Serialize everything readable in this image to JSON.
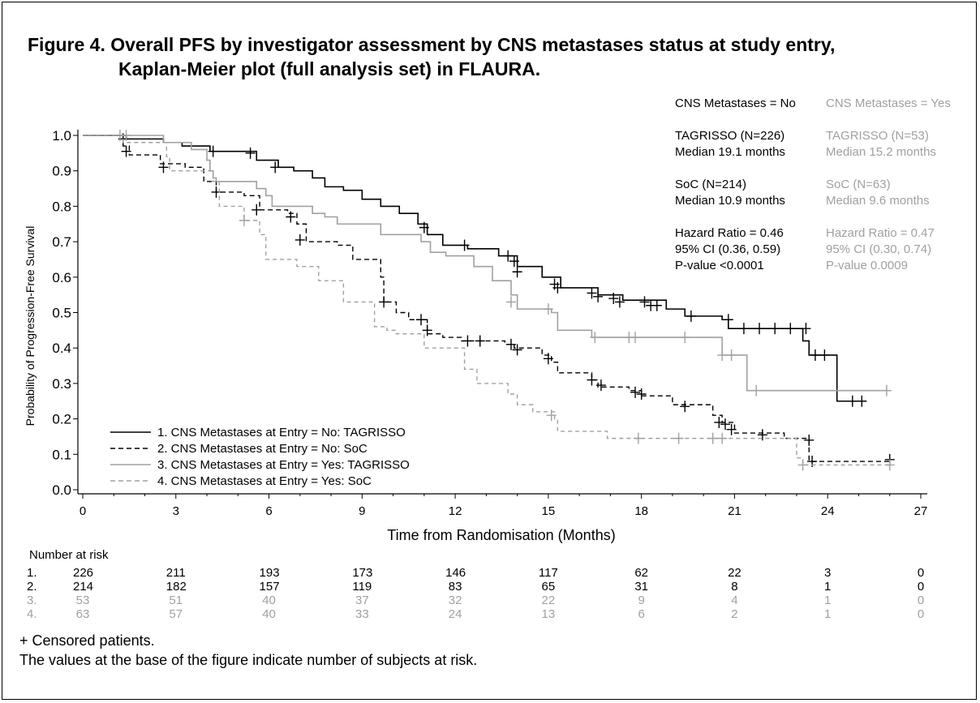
{
  "title": {
    "line1": "Figure 4. Overall PFS by investigator assessment by CNS metastases status at study entry,",
    "line2": "Kaplan-Meier plot (full analysis set) in FLAURA."
  },
  "stats": {
    "no": {
      "header": "CNS Metastases = No",
      "tag_n": "TAGRISSO (N=226)",
      "tag_median": "Median 19.1 months",
      "soc_n": "SoC (N=214)",
      "soc_median": "Median 10.9 months",
      "hr": "Hazard Ratio = 0.46",
      "ci": "95% CI (0.36, 0.59)",
      "p": "P-value <0.0001"
    },
    "yes": {
      "header": "CNS Metastases = Yes",
      "tag_n": "TAGRISSO (N=53)",
      "tag_median": "Median 15.2 months",
      "soc_n": "SoC (N=63)",
      "soc_median": "Median 9.6 months",
      "hr": "Hazard Ratio = 0.47",
      "ci": "95% CI (0.30, 0.74)",
      "p": "P-value 0.0009"
    }
  },
  "risk": {
    "header": "Number at risk",
    "rows": [
      {
        "label": "1.",
        "color": "#000000",
        "values": [
          "226",
          "211",
          "193",
          "173",
          "146",
          "117",
          "62",
          "22",
          "3",
          "0"
        ]
      },
      {
        "label": "2.",
        "color": "#000000",
        "values": [
          "214",
          "182",
          "157",
          "119",
          "83",
          "65",
          "31",
          "8",
          "1",
          "0"
        ]
      },
      {
        "label": "3.",
        "color": "#a0a0a0",
        "values": [
          "53",
          "51",
          "40",
          "37",
          "32",
          "22",
          "9",
          "4",
          "1",
          "0"
        ]
      },
      {
        "label": "4.",
        "color": "#a0a0a0",
        "values": [
          "63",
          "57",
          "40",
          "33",
          "24",
          "13",
          "6",
          "2",
          "1",
          "0"
        ]
      }
    ]
  },
  "footnotes": {
    "censored": "+ Censored patients.",
    "base": "The values at the base of the figure indicate number of subjects at risk."
  },
  "chart_data": {
    "type": "line",
    "xlabel": "Time from Randomisation (Months)",
    "ylabel": "Probability of Progression-Free Survival",
    "xlim": [
      0,
      27
    ],
    "ylim": [
      0,
      1
    ],
    "xticks": [
      0,
      3,
      6,
      9,
      12,
      15,
      18,
      21,
      24,
      27
    ],
    "yticks": [
      0.0,
      0.1,
      0.2,
      0.3,
      0.4,
      0.5,
      0.6,
      0.7,
      0.8,
      0.9,
      1.0
    ],
    "ytick_labels": [
      "0.0",
      "0.1",
      "0.2",
      "0.3",
      "0.4",
      "0.5",
      "0.6",
      "0.7",
      "0.8",
      "0.9",
      "1.0"
    ],
    "legend_position": "bottom-left",
    "series": [
      {
        "name": "1. CNS Metastases at Entry = No: TAGRISSO",
        "color": "#000000",
        "dash": "solid",
        "steps": [
          [
            0,
            1.0
          ],
          [
            1.4,
            0.99
          ],
          [
            2.6,
            0.98
          ],
          [
            3.2,
            0.97
          ],
          [
            4.1,
            0.955
          ],
          [
            5.6,
            0.93
          ],
          [
            6.3,
            0.91
          ],
          [
            6.8,
            0.9
          ],
          [
            7.4,
            0.88
          ],
          [
            7.8,
            0.855
          ],
          [
            8.4,
            0.845
          ],
          [
            9.0,
            0.82
          ],
          [
            9.6,
            0.8
          ],
          [
            10.2,
            0.78
          ],
          [
            10.8,
            0.75
          ],
          [
            11.1,
            0.72
          ],
          [
            11.6,
            0.69
          ],
          [
            12.4,
            0.68
          ],
          [
            13.4,
            0.66
          ],
          [
            14.0,
            0.63
          ],
          [
            14.8,
            0.6
          ],
          [
            15.4,
            0.57
          ],
          [
            16.6,
            0.55
          ],
          [
            17.4,
            0.535
          ],
          [
            18.8,
            0.51
          ],
          [
            19.4,
            0.49
          ],
          [
            20.6,
            0.48
          ],
          [
            20.8,
            0.455
          ],
          [
            23.2,
            0.42
          ],
          [
            23.4,
            0.38
          ],
          [
            24.3,
            0.25
          ],
          [
            25.0,
            0.25
          ]
        ],
        "censored": [
          [
            1.3,
            0.99
          ],
          [
            4.2,
            0.955
          ],
          [
            5.4,
            0.95
          ],
          [
            6.2,
            0.91
          ],
          [
            11.0,
            0.74
          ],
          [
            12.3,
            0.69
          ],
          [
            13.7,
            0.66
          ],
          [
            13.9,
            0.645
          ],
          [
            14.0,
            0.615
          ],
          [
            15.2,
            0.58
          ],
          [
            15.3,
            0.57
          ],
          [
            16.4,
            0.555
          ],
          [
            16.6,
            0.545
          ],
          [
            17.1,
            0.54
          ],
          [
            17.3,
            0.53
          ],
          [
            18.1,
            0.53
          ],
          [
            18.3,
            0.52
          ],
          [
            18.5,
            0.52
          ],
          [
            19.6,
            0.49
          ],
          [
            20.8,
            0.48
          ],
          [
            21.3,
            0.455
          ],
          [
            21.8,
            0.455
          ],
          [
            22.3,
            0.455
          ],
          [
            22.8,
            0.455
          ],
          [
            23.3,
            0.455
          ],
          [
            23.6,
            0.38
          ],
          [
            23.9,
            0.38
          ],
          [
            24.8,
            0.25
          ],
          [
            25.1,
            0.25
          ]
        ]
      },
      {
        "name": "2. CNS Metastases at Entry = No: SoC",
        "color": "#000000",
        "dash": "dashed",
        "steps": [
          [
            0,
            1.0
          ],
          [
            1.3,
            0.97
          ],
          [
            1.5,
            0.945
          ],
          [
            2.5,
            0.92
          ],
          [
            3.3,
            0.91
          ],
          [
            3.9,
            0.87
          ],
          [
            4.3,
            0.84
          ],
          [
            5.2,
            0.83
          ],
          [
            5.7,
            0.79
          ],
          [
            6.6,
            0.78
          ],
          [
            6.9,
            0.75
          ],
          [
            7.2,
            0.7
          ],
          [
            8.2,
            0.69
          ],
          [
            8.7,
            0.65
          ],
          [
            9.6,
            0.6
          ],
          [
            9.7,
            0.53
          ],
          [
            10.1,
            0.5
          ],
          [
            10.5,
            0.48
          ],
          [
            11.1,
            0.44
          ],
          [
            11.6,
            0.43
          ],
          [
            12.2,
            0.42
          ],
          [
            13.6,
            0.41
          ],
          [
            13.9,
            0.4
          ],
          [
            14.8,
            0.38
          ],
          [
            15.1,
            0.36
          ],
          [
            15.3,
            0.33
          ],
          [
            16.4,
            0.31
          ],
          [
            16.6,
            0.29
          ],
          [
            17.6,
            0.28
          ],
          [
            18.0,
            0.265
          ],
          [
            19.0,
            0.24
          ],
          [
            20.3,
            0.21
          ],
          [
            20.6,
            0.19
          ],
          [
            21.0,
            0.16
          ],
          [
            22.6,
            0.145
          ],
          [
            23.4,
            0.08
          ],
          [
            26.0,
            0.08
          ]
        ],
        "censored": [
          [
            1.4,
            0.955
          ],
          [
            2.6,
            0.91
          ],
          [
            4.3,
            0.84
          ],
          [
            5.6,
            0.79
          ],
          [
            6.7,
            0.77
          ],
          [
            7.0,
            0.705
          ],
          [
            9.7,
            0.53
          ],
          [
            10.9,
            0.48
          ],
          [
            11.1,
            0.45
          ],
          [
            12.4,
            0.42
          ],
          [
            12.8,
            0.42
          ],
          [
            13.8,
            0.41
          ],
          [
            14.0,
            0.395
          ],
          [
            15.0,
            0.37
          ],
          [
            16.4,
            0.31
          ],
          [
            16.7,
            0.295
          ],
          [
            17.8,
            0.275
          ],
          [
            18.0,
            0.27
          ],
          [
            19.4,
            0.235
          ],
          [
            20.5,
            0.19
          ],
          [
            20.7,
            0.185
          ],
          [
            20.9,
            0.17
          ],
          [
            21.9,
            0.155
          ],
          [
            23.4,
            0.14
          ],
          [
            23.5,
            0.08
          ],
          [
            26.0,
            0.085
          ]
        ]
      },
      {
        "name": "3. CNS Metastases at Entry = Yes: TAGRISSO",
        "color": "#a0a0a0",
        "dash": "solid",
        "steps": [
          [
            0,
            1.0
          ],
          [
            2.6,
            0.98
          ],
          [
            3.5,
            0.96
          ],
          [
            4.0,
            0.93
          ],
          [
            4.1,
            0.9
          ],
          [
            4.2,
            0.88
          ],
          [
            4.3,
            0.87
          ],
          [
            5.6,
            0.85
          ],
          [
            5.9,
            0.83
          ],
          [
            6.1,
            0.8
          ],
          [
            7.4,
            0.78
          ],
          [
            7.8,
            0.77
          ],
          [
            8.2,
            0.75
          ],
          [
            9.6,
            0.72
          ],
          [
            10.9,
            0.7
          ],
          [
            11.2,
            0.67
          ],
          [
            11.7,
            0.66
          ],
          [
            12.6,
            0.63
          ],
          [
            13.2,
            0.59
          ],
          [
            13.8,
            0.55
          ],
          [
            14.0,
            0.51
          ],
          [
            15.1,
            0.5
          ],
          [
            15.3,
            0.45
          ],
          [
            16.4,
            0.43
          ],
          [
            17.0,
            0.43
          ],
          [
            20.6,
            0.38
          ],
          [
            21.4,
            0.28
          ],
          [
            26.0,
            0.28
          ]
        ],
        "censored": [
          [
            1.4,
            1.0
          ],
          [
            13.8,
            0.53
          ],
          [
            15.0,
            0.51
          ],
          [
            16.5,
            0.43
          ],
          [
            17.6,
            0.43
          ],
          [
            17.8,
            0.43
          ],
          [
            19.4,
            0.43
          ],
          [
            20.6,
            0.38
          ],
          [
            20.9,
            0.38
          ],
          [
            21.7,
            0.28
          ],
          [
            25.9,
            0.28
          ]
        ]
      },
      {
        "name": "4. CNS Metastases at Entry = Yes: SoC",
        "color": "#a0a0a0",
        "dash": "dashed",
        "steps": [
          [
            0,
            1.0
          ],
          [
            1.3,
            0.98
          ],
          [
            2.7,
            0.94
          ],
          [
            2.8,
            0.9
          ],
          [
            4.2,
            0.87
          ],
          [
            4.4,
            0.8
          ],
          [
            5.2,
            0.76
          ],
          [
            5.7,
            0.72
          ],
          [
            5.9,
            0.65
          ],
          [
            6.9,
            0.63
          ],
          [
            7.6,
            0.59
          ],
          [
            8.4,
            0.53
          ],
          [
            9.4,
            0.46
          ],
          [
            9.8,
            0.45
          ],
          [
            10.1,
            0.44
          ],
          [
            11.0,
            0.4
          ],
          [
            12.3,
            0.34
          ],
          [
            12.7,
            0.3
          ],
          [
            13.7,
            0.27
          ],
          [
            14.0,
            0.24
          ],
          [
            14.5,
            0.22
          ],
          [
            15.2,
            0.2
          ],
          [
            15.3,
            0.165
          ],
          [
            16.9,
            0.145
          ],
          [
            23.0,
            0.09
          ],
          [
            23.2,
            0.07
          ],
          [
            26.0,
            0.07
          ]
        ],
        "censored": [
          [
            1.2,
            1.0
          ],
          [
            5.2,
            0.76
          ],
          [
            15.1,
            0.21
          ],
          [
            17.9,
            0.145
          ],
          [
            19.2,
            0.145
          ],
          [
            20.3,
            0.145
          ],
          [
            20.6,
            0.145
          ],
          [
            23.2,
            0.07
          ],
          [
            26.0,
            0.07
          ]
        ]
      }
    ]
  }
}
